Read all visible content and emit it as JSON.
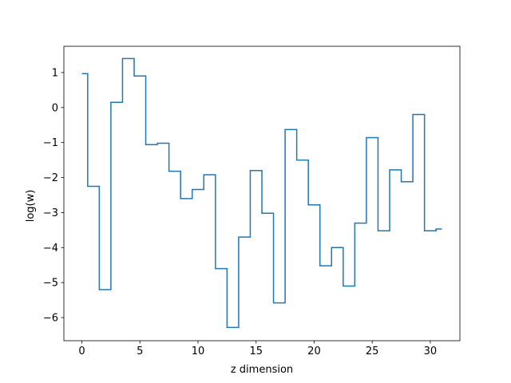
{
  "chart_data": {
    "type": "line",
    "drawstyle": "steps-mid",
    "title": "",
    "xlabel": "z dimension",
    "ylabel": "log(w)",
    "xlim": [
      -1.55,
      32.55
    ],
    "ylim": [
      -6.66,
      1.75
    ],
    "grid": false,
    "color": "#1f77b4",
    "x": [
      0,
      1,
      2,
      3,
      4,
      5,
      6,
      7,
      8,
      9,
      10,
      11,
      12,
      13,
      14,
      15,
      16,
      17,
      18,
      19,
      20,
      21,
      22,
      23,
      24,
      25,
      26,
      27,
      28,
      29,
      30,
      31
    ],
    "y": [
      0.97,
      -2.25,
      -5.2,
      0.15,
      1.4,
      0.9,
      -1.06,
      -1.02,
      -1.82,
      -2.6,
      -2.34,
      -1.92,
      -4.6,
      -6.28,
      -3.7,
      -1.8,
      -3.02,
      -5.58,
      -0.63,
      -1.5,
      -2.78,
      -4.52,
      -4.0,
      -5.1,
      -3.3,
      -0.86,
      -3.52,
      -1.78,
      -2.12,
      -0.2,
      -3.52,
      -3.47
    ],
    "xticks": [
      0,
      5,
      10,
      15,
      20,
      25,
      30
    ],
    "xtick_labels": [
      "0",
      "5",
      "10",
      "15",
      "20",
      "25",
      "30"
    ],
    "yticks": [
      1,
      0,
      -1,
      -2,
      -3,
      -4,
      -5,
      -6
    ],
    "ytick_labels": [
      "1",
      "0",
      "−1",
      "−2",
      "−3",
      "−4",
      "−5",
      "−6"
    ]
  }
}
